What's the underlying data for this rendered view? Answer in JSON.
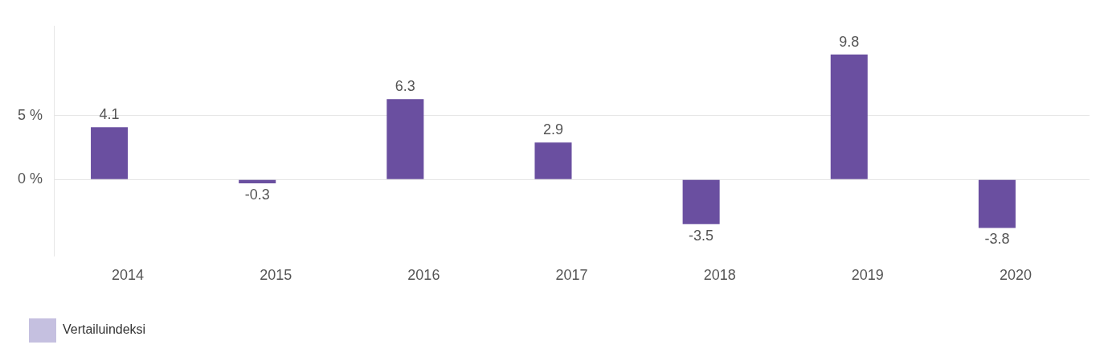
{
  "chart_data": {
    "type": "bar",
    "categories": [
      "2014",
      "2015",
      "2016",
      "2017",
      "2018",
      "2019",
      "2020"
    ],
    "series": [
      {
        "color": "#6a4fa0",
        "values": [
          4.1,
          -0.3,
          6.3,
          2.9,
          -3.5,
          9.8,
          -3.8
        ]
      },
      {
        "name": "Vertailuindeksi",
        "color": "#c5c0e0",
        "values": [
          null,
          null,
          null,
          null,
          null,
          null,
          null
        ]
      }
    ],
    "ylim": [
      -6,
      12
    ],
    "yticks": [
      {
        "value": 0,
        "label": "0 %"
      },
      {
        "value": 5,
        "label": "5 %"
      }
    ],
    "grid": "y",
    "legend": "bottom left",
    "data_labels": true
  }
}
